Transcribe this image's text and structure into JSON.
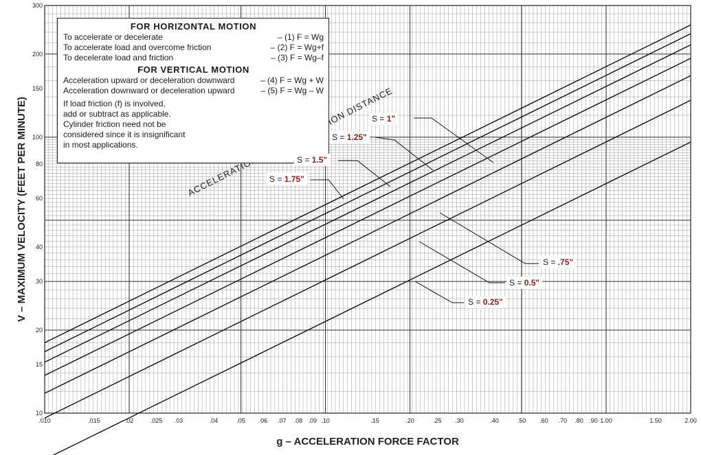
{
  "chart_data": {
    "type": "line",
    "x_scale": "log",
    "y_scale": "log",
    "xlim": [
      0.01,
      2.0
    ],
    "ylim": [
      10,
      300
    ],
    "xlabel": "g – ACCELERATION FORCE FACTOR",
    "ylabel": "V – MAXIMUM VELOCITY (FEET PER MINUTE)",
    "x_ticks": [
      ".010",
      ".015",
      ".02",
      ".025",
      ".03",
      ".04",
      ".05",
      ".06",
      ".07",
      ".08",
      ".09",
      ".10",
      ".15",
      ".20",
      ".25",
      ".30",
      ".40",
      ".50",
      ".60",
      ".70",
      ".80",
      ".90",
      "1.00",
      "1.50",
      "2.00"
    ],
    "y_ticks": [
      "10",
      "15",
      "20",
      "30",
      "40",
      "60",
      "80",
      "100",
      "150",
      "200",
      "300"
    ],
    "grid": true,
    "diagonal_label": "ACCELERATION OR DECELERATION DISTANCE",
    "series": [
      {
        "label_prefix": "S = ",
        "label_value": "1.75\"",
        "s_in": 1.75,
        "points": [
          [
            0.01,
            18.0
          ],
          [
            2.0,
            255
          ]
        ]
      },
      {
        "label_prefix": "S = ",
        "label_value": "1.5\"",
        "s_in": 1.5,
        "points": [
          [
            0.01,
            16.7
          ],
          [
            2.0,
            237
          ]
        ]
      },
      {
        "label_prefix": "S = ",
        "label_value": "1.25\"",
        "s_in": 1.25,
        "points": [
          [
            0.01,
            15.3
          ],
          [
            2.0,
            216
          ]
        ]
      },
      {
        "label_prefix": "S = ",
        "label_value": "1\"",
        "s_in": 1.0,
        "points": [
          [
            0.01,
            13.7
          ],
          [
            2.0,
            193
          ]
        ]
      },
      {
        "label_prefix": "S = ",
        "label_value": ".75\"",
        "s_in": 0.75,
        "points": [
          [
            0.01,
            11.8
          ],
          [
            2.0,
            167
          ]
        ]
      },
      {
        "label_prefix": "S = ",
        "label_value": "0.5\"",
        "s_in": 0.5,
        "points": [
          [
            0.01,
            9.6
          ],
          [
            2.0,
            136
          ]
        ]
      },
      {
        "label_prefix": "S = ",
        "label_value": "0.25\"",
        "s_in": 0.25,
        "points": [
          [
            0.01,
            6.8
          ],
          [
            2.0,
            96
          ]
        ]
      }
    ]
  },
  "legend": {
    "horizontal_title": "FOR HORIZONTAL MOTION",
    "horizontal_rows": [
      {
        "text": "To accelerate or decelerate",
        "formula": "– (1) F = Wg"
      },
      {
        "text": "To accelerate load and overcome friction",
        "formula": "– (2) F = Wg+f"
      },
      {
        "text": "To decelerate load and friction",
        "formula": "– (3) F = Wg–f"
      }
    ],
    "vertical_title": "FOR VERTICAL MOTION",
    "vertical_rows": [
      {
        "text": "Acceleration upward or deceleration downward",
        "formula": "– (4) F = Wg + W"
      },
      {
        "text": "Acceleration downward or deceleration upward",
        "formula": "– (5) F = Wg – W"
      }
    ],
    "notes": [
      "If load friction (f) is involved,",
      "add or subtract as applicable.",
      "Cylinder friction need not be",
      "considered since it is insignificant",
      "in most applications."
    ]
  }
}
